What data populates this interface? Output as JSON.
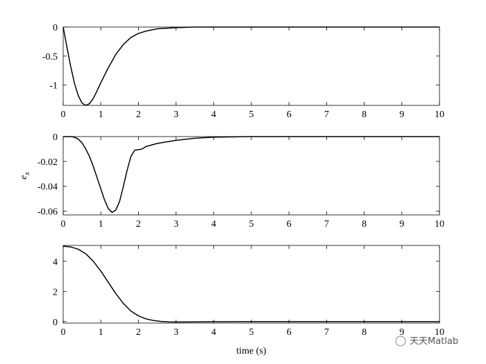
{
  "chart_data": [
    {
      "type": "line",
      "color": "#000000",
      "x": [
        0,
        0.1,
        0.2,
        0.3,
        0.4,
        0.5,
        0.6,
        0.7,
        0.8,
        0.9,
        1.0,
        1.2,
        1.4,
        1.6,
        1.8,
        2.0,
        2.2,
        2.5,
        3,
        3.5,
        4,
        5,
        6,
        7,
        8,
        9,
        10
      ],
      "series": [
        {
          "values": [
            0,
            -0.35,
            -0.68,
            -0.97,
            -1.18,
            -1.31,
            -1.35,
            -1.32,
            -1.23,
            -1.1,
            -0.96,
            -0.7,
            -0.47,
            -0.3,
            -0.18,
            -0.11,
            -0.07,
            -0.03,
            -0.01,
            0,
            0,
            0,
            0,
            0,
            0,
            0,
            0
          ]
        }
      ],
      "xlim": [
        0,
        10
      ],
      "xticks": [
        0,
        1,
        2,
        3,
        4,
        5,
        6,
        7,
        8,
        9,
        10
      ],
      "ylim": [
        -1.35,
        0
      ],
      "yticks": [
        -1,
        -0.5,
        0
      ]
    },
    {
      "type": "line",
      "color": "#000000",
      "ylabel": {
        "base": "e",
        "sub": "x"
      },
      "x": [
        0,
        0.2,
        0.3,
        0.4,
        0.5,
        0.6,
        0.7,
        0.8,
        0.9,
        1.0,
        1.1,
        1.2,
        1.3,
        1.4,
        1.5,
        1.6,
        1.7,
        1.8,
        1.9,
        2.0,
        2.1,
        2.2,
        2.5,
        3,
        3.5,
        4,
        5,
        6,
        7,
        8,
        9,
        10
      ],
      "series": [
        {
          "values": [
            0,
            0,
            -0.0005,
            -0.002,
            -0.005,
            -0.01,
            -0.016,
            -0.024,
            -0.033,
            -0.042,
            -0.051,
            -0.058,
            -0.061,
            -0.059,
            -0.052,
            -0.04,
            -0.027,
            -0.016,
            -0.011,
            -0.0105,
            -0.01,
            -0.008,
            -0.0055,
            -0.003,
            -0.0013,
            -0.0005,
            0,
            0,
            0,
            0,
            0,
            0
          ]
        }
      ],
      "xlim": [
        0,
        10
      ],
      "xticks": [
        0,
        1,
        2,
        3,
        4,
        5,
        6,
        7,
        8,
        9,
        10
      ],
      "ylim": [
        -0.063,
        0
      ],
      "yticks": [
        -0.06,
        -0.04,
        -0.02,
        0
      ]
    },
    {
      "type": "line",
      "color": "#000000",
      "xlabel": "time (s)",
      "x": [
        0,
        0.2,
        0.4,
        0.6,
        0.8,
        1.0,
        1.2,
        1.4,
        1.6,
        1.8,
        2.0,
        2.2,
        2.4,
        2.6,
        2.8,
        3.0,
        3.5,
        4,
        5,
        6,
        7,
        8,
        9,
        10
      ],
      "series": [
        {
          "values": [
            5,
            4.95,
            4.8,
            4.5,
            4.0,
            3.35,
            2.6,
            1.85,
            1.2,
            0.7,
            0.38,
            0.18,
            0.07,
            0.01,
            -0.02,
            -0.025,
            -0.02,
            -0.01,
            0,
            0,
            0,
            0,
            0,
            0
          ]
        }
      ],
      "xlim": [
        0,
        10
      ],
      "xticks": [
        0,
        1,
        2,
        3,
        4,
        5,
        6,
        7,
        8,
        9,
        10
      ],
      "ylim": [
        -0.1,
        5.05
      ],
      "yticks": [
        0,
        2,
        4
      ]
    }
  ],
  "watermark": "天天Matlab"
}
